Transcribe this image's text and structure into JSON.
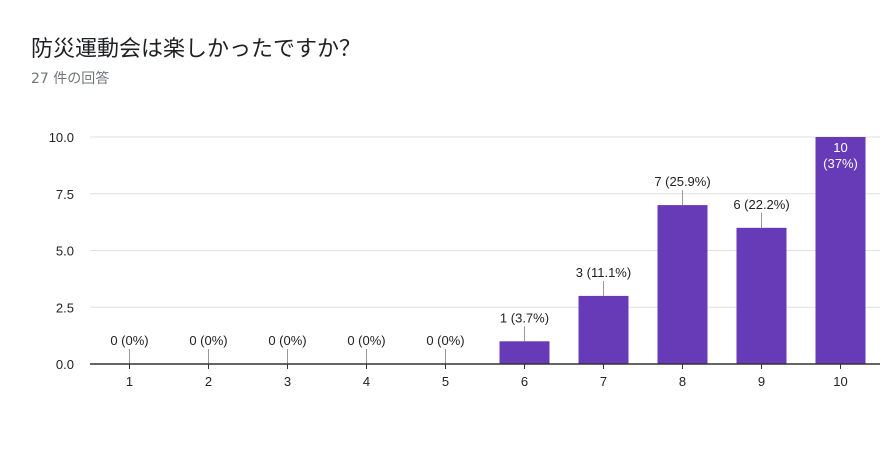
{
  "header": {
    "title": "防災運動会は楽しかったですか？",
    "response_count": "27 件の回答"
  },
  "colors": {
    "bar": "#673ab7",
    "grid": "#e0e0e0",
    "axis": "#333333"
  },
  "chart_data": {
    "type": "bar",
    "title": "防災運動会は楽しかったですか？",
    "categories": [
      "1",
      "2",
      "3",
      "4",
      "5",
      "6",
      "7",
      "8",
      "9",
      "10"
    ],
    "values": [
      0,
      0,
      0,
      0,
      0,
      1,
      3,
      7,
      6,
      10
    ],
    "data_labels": [
      "0 (0%)",
      "0 (0%)",
      "0 (0%)",
      "0 (0%)",
      "0 (0%)",
      "1 (3.7%)",
      "3 (11.1%)",
      "7 (25.9%)",
      "6 (22.2%)",
      "10 (37%)"
    ],
    "yticks": [
      "0.0",
      "2.5",
      "5.0",
      "7.5",
      "10.0"
    ],
    "ylim": [
      0,
      10
    ],
    "xlabel": "",
    "ylabel": "",
    "grid": true,
    "legend": false
  }
}
